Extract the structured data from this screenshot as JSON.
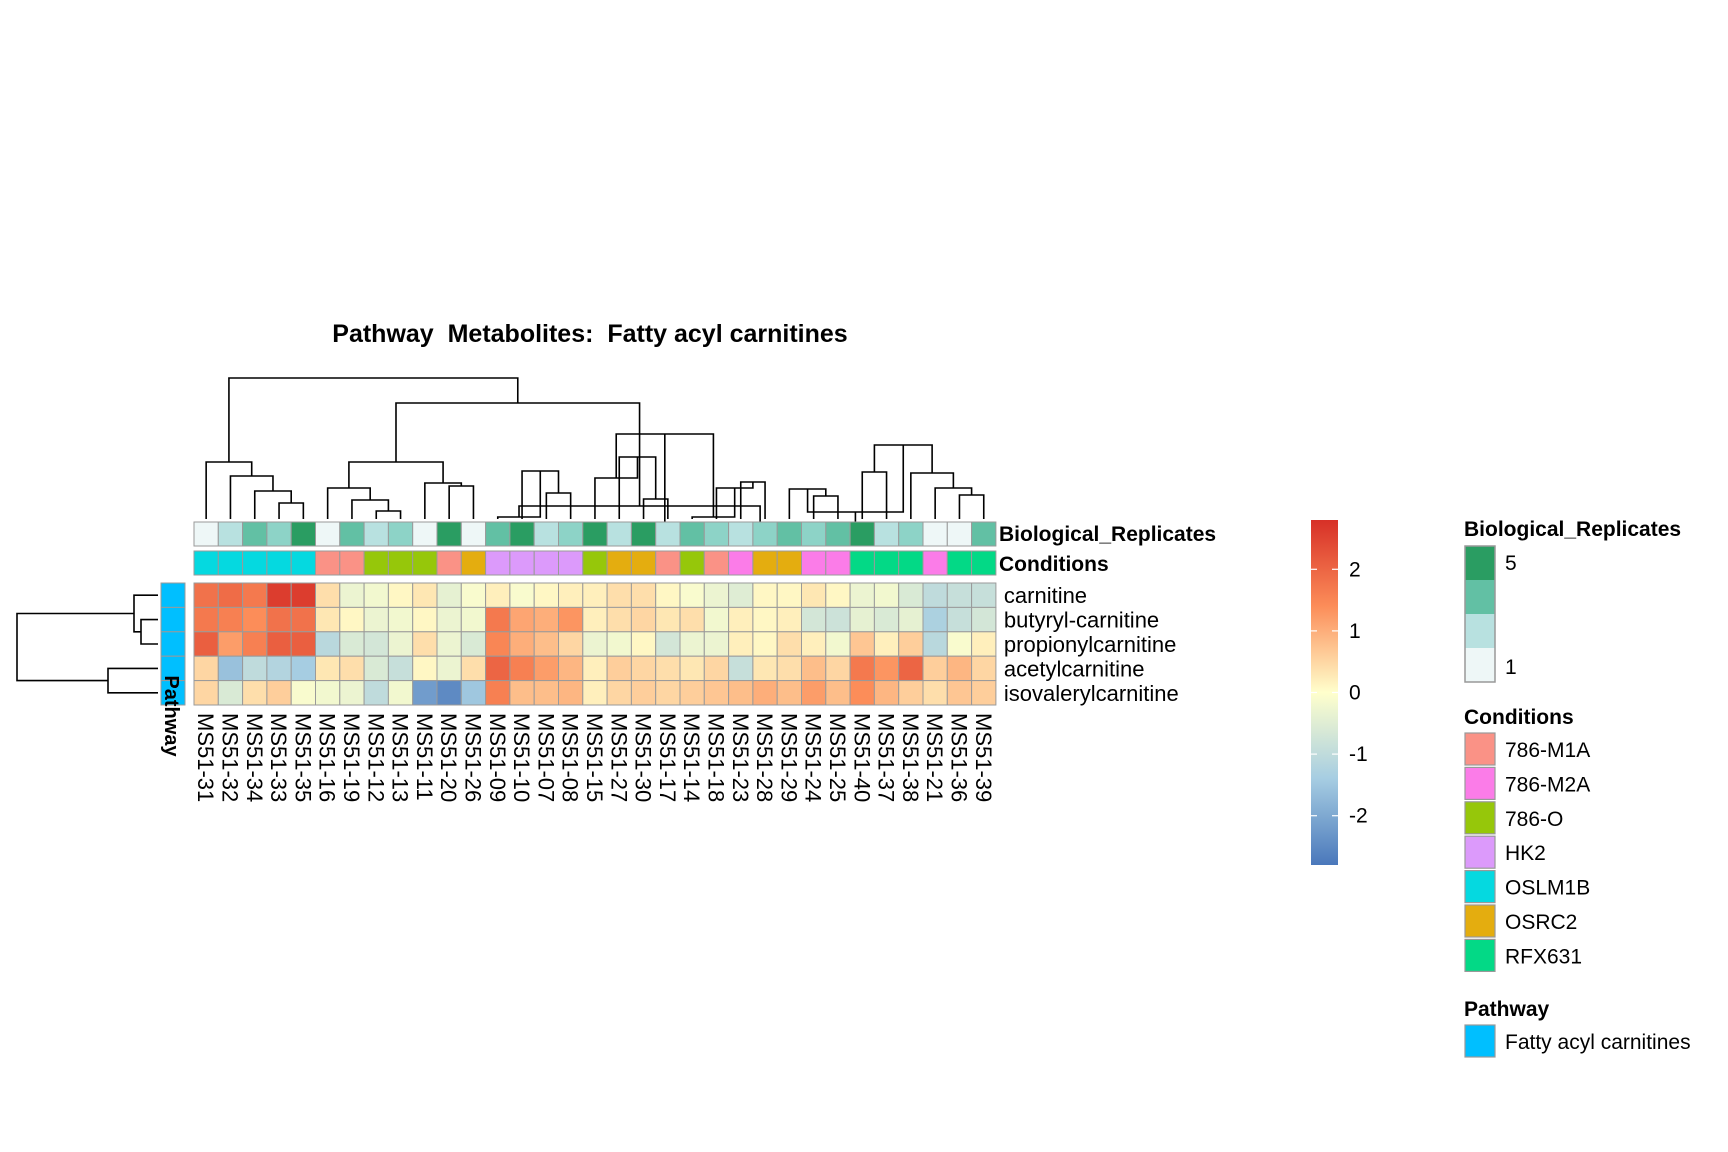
{
  "chart_data": {
    "type": "heatmap",
    "title": "Pathway  Metabolites:  Fatty acyl carnitines",
    "columns": [
      "MS51-31",
      "MS51-32",
      "MS51-34",
      "MS51-33",
      "MS51-35",
      "MS51-16",
      "MS51-19",
      "MS51-12",
      "MS51-13",
      "MS51-11",
      "MS51-20",
      "MS51-26",
      "MS51-09",
      "MS51-10",
      "MS51-07",
      "MS51-08",
      "MS51-15",
      "MS51-27",
      "MS51-30",
      "MS51-17",
      "MS51-14",
      "MS51-18",
      "MS51-23",
      "MS51-28",
      "MS51-29",
      "MS51-24",
      "MS51-25",
      "MS51-40",
      "MS51-37",
      "MS51-38",
      "MS51-21",
      "MS51-36",
      "MS51-39"
    ],
    "rows": [
      "carnitine",
      "butyryl-carnitine",
      "propionylcarnitine",
      "acetylcarnitine",
      "isovalerylcarnitine"
    ],
    "values": [
      [
        1.8,
        1.9,
        1.7,
        2.6,
        2.6,
        0.4,
        -0.3,
        -0.2,
        0.1,
        0.3,
        -0.4,
        -0.1,
        0.2,
        -0.1,
        0.1,
        0.2,
        0.2,
        0.4,
        0.4,
        0.1,
        -0.1,
        -0.3,
        -0.5,
        0.1,
        0.1,
        0.3,
        0.1,
        -0.3,
        -0.2,
        -0.6,
        -1.0,
        -0.9,
        -0.9
      ],
      [
        1.7,
        1.6,
        1.4,
        1.8,
        1.8,
        0.3,
        0.1,
        -0.3,
        -0.2,
        0.1,
        -0.3,
        -0.2,
        1.7,
        1.1,
        1.0,
        1.3,
        0.2,
        0.4,
        0.5,
        0.3,
        0.4,
        -0.2,
        0.2,
        0.1,
        0.2,
        -0.7,
        -0.8,
        -0.4,
        -0.6,
        -0.4,
        -1.3,
        -0.9,
        -0.7
      ],
      [
        2.1,
        1.2,
        1.6,
        2.1,
        2.1,
        -1.1,
        -0.6,
        -0.7,
        -0.3,
        0.4,
        -0.3,
        -0.6,
        1.5,
        1.0,
        0.8,
        0.5,
        -0.3,
        -0.2,
        0.1,
        -0.7,
        -0.3,
        -0.3,
        0.2,
        0.1,
        0.4,
        0.2,
        -0.2,
        0.7,
        0.2,
        0.6,
        -1.1,
        -0.1,
        0.2
      ],
      [
        0.5,
        -1.6,
        -1.0,
        -1.2,
        -1.4,
        0.3,
        0.4,
        -0.6,
        -0.9,
        0.1,
        -0.3,
        0.4,
        2.0,
        1.6,
        1.2,
        0.9,
        0.2,
        0.6,
        0.5,
        0.4,
        0.3,
        0.5,
        -0.9,
        0.3,
        0.4,
        0.8,
        0.5,
        1.7,
        1.3,
        2.0,
        0.6,
        0.9,
        0.5
      ],
      [
        0.5,
        -0.6,
        0.4,
        0.6,
        -0.1,
        -0.2,
        -0.3,
        -1.0,
        -0.2,
        -2.2,
        -2.5,
        -1.5,
        1.6,
        0.8,
        0.8,
        0.9,
        0.2,
        0.5,
        0.6,
        0.5,
        0.6,
        0.7,
        0.8,
        1.0,
        0.8,
        1.2,
        0.8,
        1.4,
        0.9,
        0.6,
        0.4,
        0.7,
        0.6
      ]
    ],
    "colorbar": {
      "ticks": [
        2,
        1,
        0,
        -1,
        -2
      ],
      "range": [
        -2.8,
        2.8
      ]
    },
    "col_annotations": {
      "Biological_Replicates": [
        1,
        2,
        4,
        3,
        5,
        1,
        4,
        2,
        3,
        1,
        5,
        1,
        4,
        5,
        2,
        3,
        5,
        2,
        5,
        2,
        4,
        3,
        2,
        3,
        4,
        3,
        4,
        5,
        2,
        3,
        1,
        1,
        4
      ],
      "Conditions": [
        "OSLM1B",
        "OSLM1B",
        "OSLM1B",
        "OSLM1B",
        "OSLM1B",
        "786-M1A",
        "786-M1A",
        "786-O",
        "786-O",
        "786-O",
        "786-M1A",
        "OSRC2",
        "HK2",
        "HK2",
        "HK2",
        "HK2",
        "786-O",
        "OSRC2",
        "OSRC2",
        "786-M1A",
        "786-O",
        "786-M1A",
        "786-M2A",
        "OSRC2",
        "OSRC2",
        "786-M2A",
        "786-M2A",
        "RFX631",
        "RFX631",
        "RFX631",
        "786-M2A",
        "RFX631",
        "RFX631"
      ]
    },
    "row_annotations": {
      "Pathway": "Fatty acyl carnitines"
    }
  },
  "labels": {
    "bio_rep_track": "Biological_Replicates",
    "conditions_track": "Conditions",
    "pathway_track": "Pathway"
  },
  "legend": {
    "bio_rep": {
      "title": "Biological_Replicates",
      "high_label": "5",
      "low_label": "1",
      "colors": [
        "#2a9d62",
        "#62c0a4",
        "#b8e1e0",
        "#eef7f7"
      ]
    },
    "conditions": {
      "title": "Conditions",
      "items": [
        {
          "label": "786-M1A",
          "color": "#fa9286"
        },
        {
          "label": "786-M2A",
          "color": "#fb7ce8"
        },
        {
          "label": "786-O",
          "color": "#96c70a"
        },
        {
          "label": "HK2",
          "color": "#dc9afb"
        },
        {
          "label": "OSLM1B",
          "color": "#05d9e0"
        },
        {
          "label": "OSRC2",
          "color": "#e4ad0f"
        },
        {
          "label": "RFX631",
          "color": "#03d986"
        }
      ]
    },
    "pathway": {
      "title": "Pathway",
      "items": [
        {
          "label": "Fatty acyl carnitines",
          "color": "#00bfff"
        }
      ]
    }
  },
  "colors": {
    "heat_low": "#4a78bb",
    "heat_mid": "#ffffcc",
    "heat_high": "#d73027",
    "cell_border": "#9a9a9a",
    "bio_rep_scale": [
      "#eef7f7",
      "#b8e1e0",
      "#8dd3c7",
      "#62c0a4",
      "#2a9d62"
    ]
  }
}
